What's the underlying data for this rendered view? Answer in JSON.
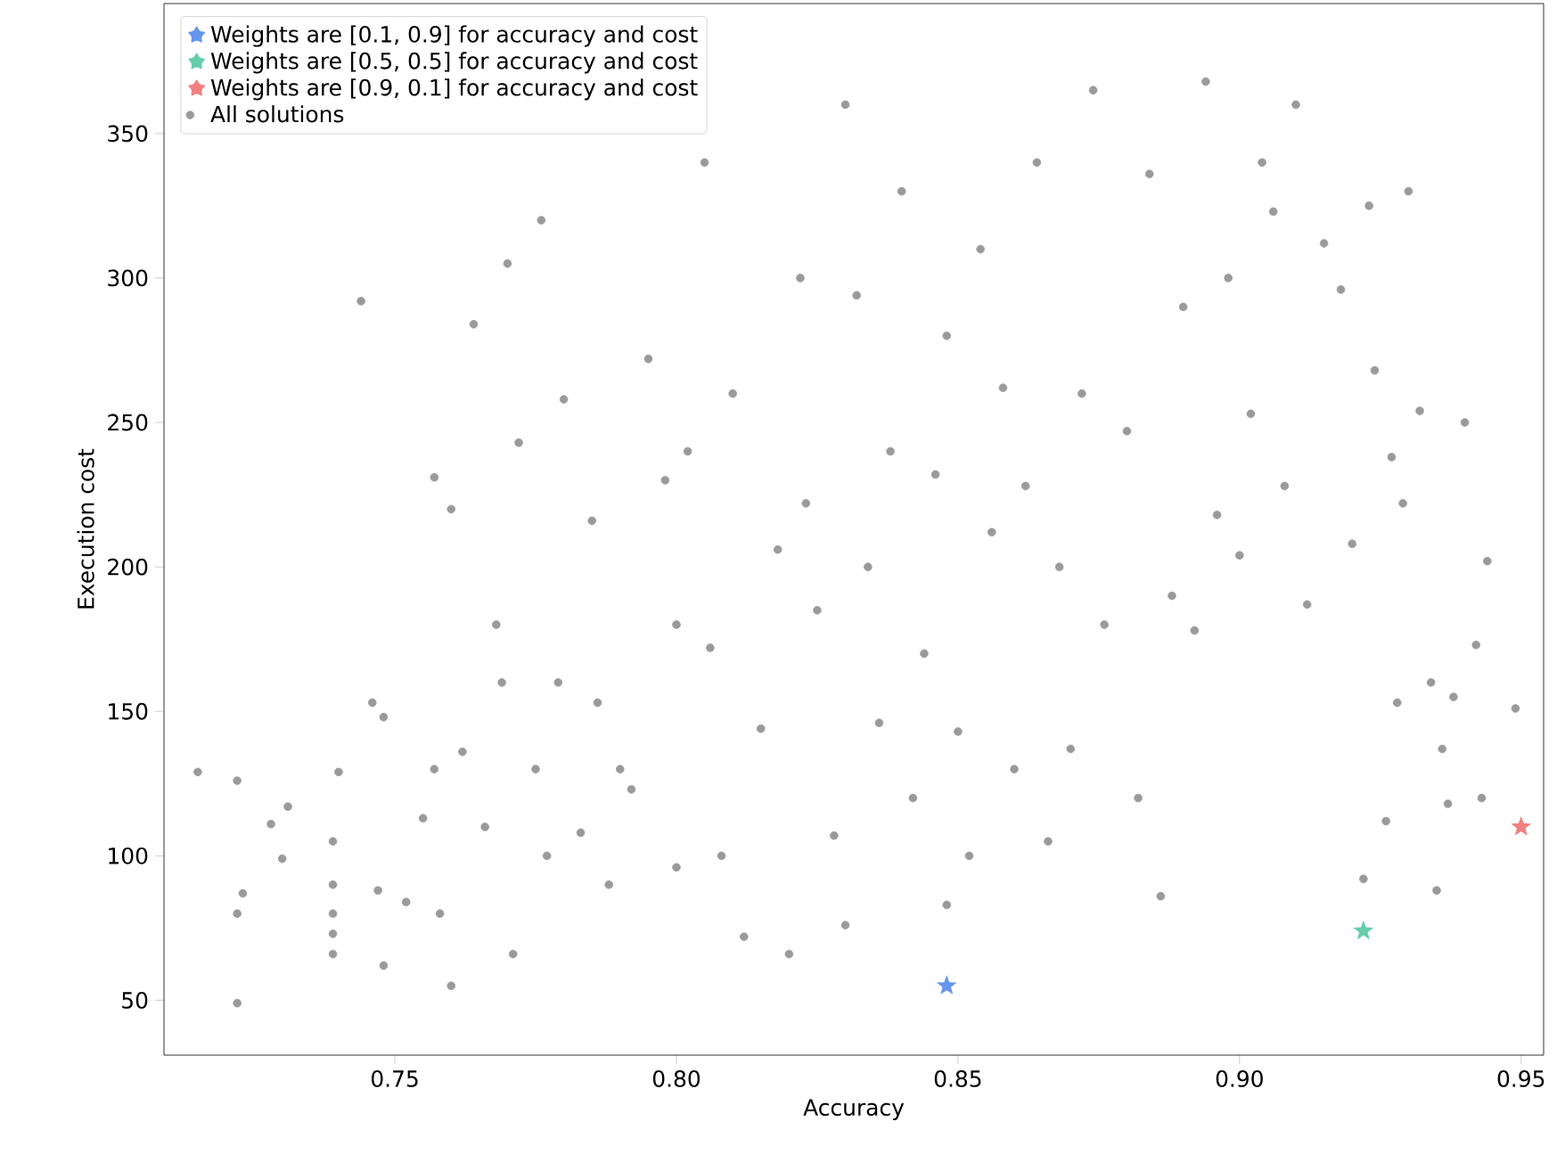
{
  "chart_data": {
    "type": "scatter",
    "xlabel": "Accuracy",
    "ylabel": "Execution cost",
    "xlim": [
      0.709,
      0.954
    ],
    "ylim": [
      31,
      395
    ],
    "xticks": [
      0.75,
      {
        "value": 0.8,
        "label": "0.80"
      },
      0.85,
      {
        "value": 0.9,
        "label": "0.90"
      },
      0.95
    ],
    "yticks": [
      50,
      100,
      150,
      200,
      250,
      300,
      350
    ],
    "grid": false,
    "legend": "top left",
    "series": [
      {
        "name": "Weights are [0.1, 0.9] for accuracy and cost",
        "color": "#6495ed",
        "marker": "star",
        "x": [
          0.848
        ],
        "values": [
          55
        ]
      },
      {
        "name": "Weights are [0.5, 0.5] for accuracy and cost",
        "color": "#66cdaa",
        "marker": "star",
        "x": [
          0.922
        ],
        "values": [
          74
        ]
      },
      {
        "name": "Weights are [0.9, 0.1] for accuracy and cost",
        "color": "#f08080",
        "marker": "star",
        "x": [
          0.95
        ],
        "values": [
          110
        ]
      },
      {
        "name": "All solutions",
        "color": "#9a9a9a",
        "marker": "circle",
        "x": [
          0.715,
          0.722,
          0.723,
          0.722,
          0.722,
          0.728,
          0.73,
          0.731,
          0.739,
          0.739,
          0.739,
          0.739,
          0.739,
          0.74,
          0.744,
          0.746,
          0.748,
          0.747,
          0.748,
          0.752,
          0.755,
          0.757,
          0.758,
          0.757,
          0.76,
          0.76,
          0.762,
          0.764,
          0.766,
          0.768,
          0.769,
          0.77,
          0.771,
          0.772,
          0.775,
          0.776,
          0.777,
          0.779,
          0.78,
          0.783,
          0.785,
          0.786,
          0.788,
          0.79,
          0.792,
          0.795,
          0.798,
          0.8,
          0.8,
          0.802,
          0.805,
          0.806,
          0.808,
          0.81,
          0.812,
          0.815,
          0.818,
          0.82,
          0.822,
          0.823,
          0.825,
          0.828,
          0.83,
          0.83,
          0.832,
          0.834,
          0.836,
          0.838,
          0.84,
          0.842,
          0.844,
          0.846,
          0.848,
          0.848,
          0.85,
          0.852,
          0.854,
          0.856,
          0.858,
          0.86,
          0.862,
          0.864,
          0.866,
          0.868,
          0.87,
          0.872,
          0.874,
          0.876,
          0.88,
          0.882,
          0.884,
          0.886,
          0.888,
          0.89,
          0.892,
          0.894,
          0.896,
          0.898,
          0.9,
          0.902,
          0.904,
          0.906,
          0.908,
          0.91,
          0.912,
          0.915,
          0.918,
          0.92,
          0.922,
          0.923,
          0.924,
          0.926,
          0.927,
          0.928,
          0.929,
          0.93,
          0.932,
          0.934,
          0.935,
          0.936,
          0.937,
          0.938,
          0.94,
          0.942,
          0.943,
          0.944,
          0.949
        ],
        "values": [
          129,
          126,
          87,
          80,
          49,
          111,
          99,
          117,
          105,
          90,
          80,
          73,
          66,
          129,
          292,
          153,
          148,
          88,
          62,
          84,
          113,
          130,
          80,
          231,
          220,
          55,
          136,
          284,
          110,
          180,
          160,
          305,
          66,
          243,
          130,
          320,
          100,
          160,
          258,
          108,
          216,
          153,
          90,
          130,
          123,
          272,
          230,
          180,
          96,
          240,
          340,
          172,
          100,
          260,
          72,
          144,
          206,
          66,
          300,
          222,
          185,
          107,
          360,
          76,
          294,
          200,
          146,
          240,
          330,
          120,
          170,
          232,
          83,
          280,
          143,
          100,
          310,
          212,
          262,
          130,
          228,
          340,
          105,
          200,
          137,
          260,
          365,
          180,
          247,
          120,
          336,
          86,
          190,
          290,
          178,
          368,
          218,
          300,
          204,
          253,
          340,
          323,
          228,
          360,
          187,
          312,
          296,
          208,
          92,
          325,
          268,
          112,
          238,
          153,
          222,
          330,
          254,
          160,
          88,
          137,
          118,
          155,
          250,
          173,
          120,
          202,
          151
        ]
      }
    ]
  }
}
